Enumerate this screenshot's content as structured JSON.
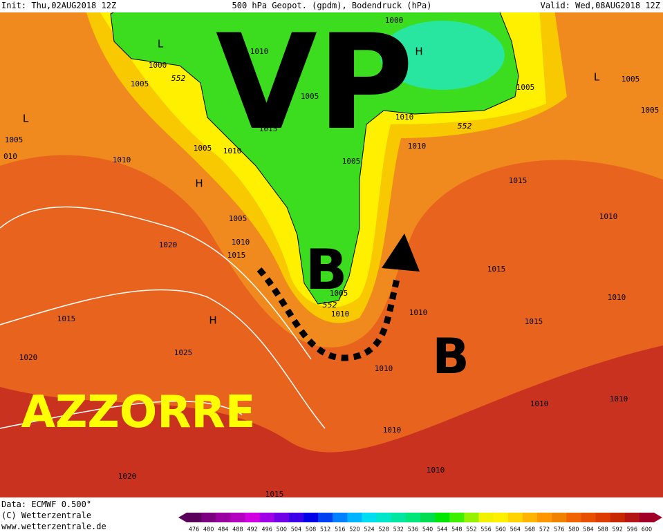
{
  "header": {
    "init": "Init: Thu,02AUG2018 12Z",
    "title": "500 hPa Geopot. (gpdm), Bodendruck (hPa)",
    "valid": "Valid: Wed,08AUG2018 12Z"
  },
  "annotations": {
    "vp": "VP",
    "b_north": "B",
    "b_south": "B",
    "azzorre": "AZZORRE"
  },
  "pressure_centers": [
    "L",
    "H",
    "L",
    "L",
    "H",
    "H"
  ],
  "isobar_labels": [
    "1000",
    "1010",
    "1000",
    "1005",
    "1005",
    "1005",
    "1005",
    "1005",
    "1015",
    "1010",
    "1005",
    "010",
    "1010",
    "1005",
    "1010",
    "1010",
    "1005",
    "1015",
    "1005",
    "1010",
    "1010",
    "1015",
    "1020",
    "1015",
    "1010",
    "1005",
    "1010",
    "1010",
    "1015",
    "1015",
    "1025",
    "1020",
    "1010",
    "1010",
    "1010",
    "1010",
    "1010",
    "1020",
    "1015"
  ],
  "contour_labels": [
    "552",
    "552",
    "552"
  ],
  "footer": {
    "data": "Data: ECMWF  0.500°",
    "copyright": "(C) Wetterzentrale",
    "url": "www.wetterzentrale.de"
  },
  "color_scale": {
    "labels": [
      476,
      480,
      484,
      488,
      492,
      496,
      500,
      504,
      508,
      512,
      516,
      520,
      524,
      528,
      532,
      536,
      540,
      544,
      548,
      552,
      556,
      560,
      564,
      568,
      572,
      576,
      580,
      584,
      588,
      592,
      596,
      600
    ],
    "colors": [
      "#5a005a",
      "#7a0080",
      "#9a00a0",
      "#b400c0",
      "#d000e0",
      "#a000e6",
      "#7000e6",
      "#3c00e6",
      "#0000e6",
      "#0040f0",
      "#0080ff",
      "#00b4ff",
      "#00dcf0",
      "#00e6c8",
      "#00e6a0",
      "#00e678",
      "#00dc50",
      "#00e600",
      "#3cf000",
      "#96f000",
      "#f0f000",
      "#fff000",
      "#ffd200",
      "#ffb400",
      "#ff9600",
      "#f08200",
      "#f06400",
      "#e65000",
      "#dc3c00",
      "#c82800",
      "#b41414",
      "#a00028"
    ]
  }
}
